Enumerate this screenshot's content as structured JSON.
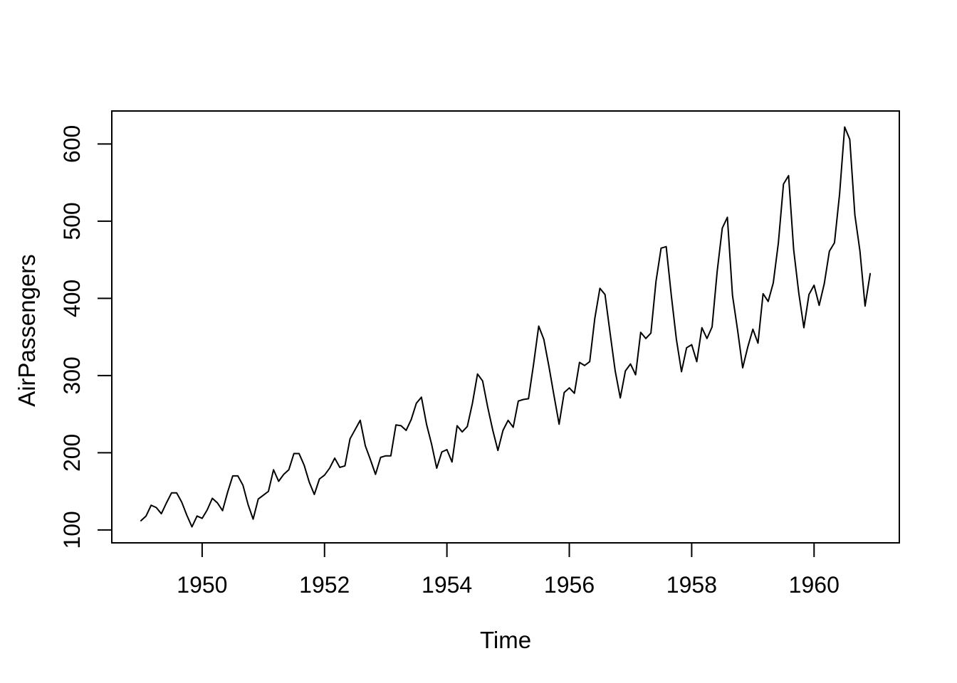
{
  "figure": {
    "background": "#ffffff",
    "foreground": "#000000"
  },
  "chart_data": {
    "type": "line",
    "title": "",
    "xlabel": "Time",
    "ylabel": "AirPassengers",
    "series_name": "AirPassengers",
    "start_year": 1949,
    "frequency": 12,
    "values": [
      112,
      118,
      132,
      129,
      121,
      135,
      148,
      148,
      136,
      119,
      104,
      118,
      115,
      126,
      141,
      135,
      125,
      149,
      170,
      170,
      158,
      133,
      114,
      140,
      145,
      150,
      178,
      163,
      172,
      178,
      199,
      199,
      184,
      162,
      146,
      166,
      171,
      180,
      193,
      181,
      183,
      218,
      230,
      242,
      209,
      191,
      172,
      194,
      196,
      196,
      236,
      235,
      229,
      243,
      264,
      272,
      237,
      211,
      180,
      201,
      204,
      188,
      235,
      227,
      234,
      264,
      302,
      293,
      259,
      229,
      203,
      229,
      242,
      233,
      267,
      269,
      270,
      315,
      364,
      347,
      312,
      274,
      237,
      278,
      284,
      277,
      317,
      313,
      318,
      374,
      413,
      405,
      355,
      306,
      271,
      306,
      315,
      301,
      356,
      348,
      355,
      422,
      465,
      467,
      404,
      347,
      305,
      336,
      340,
      318,
      362,
      348,
      363,
      435,
      491,
      505,
      404,
      359,
      310,
      337,
      360,
      342,
      406,
      396,
      420,
      472,
      548,
      559,
      463,
      407,
      362,
      405,
      417,
      391,
      419,
      461,
      472,
      535,
      622,
      606,
      508,
      461,
      390,
      432
    ],
    "x_ticks": [
      1950,
      1952,
      1954,
      1956,
      1958,
      1960
    ],
    "y_ticks": [
      100,
      200,
      300,
      400,
      500,
      600
    ],
    "xlim": [
      1948.5236,
      1961.3931
    ],
    "ylim": [
      83.28,
      642.72
    ],
    "grid": false,
    "legend": "none",
    "line_color": "#000000",
    "axis_color": "#000000"
  }
}
